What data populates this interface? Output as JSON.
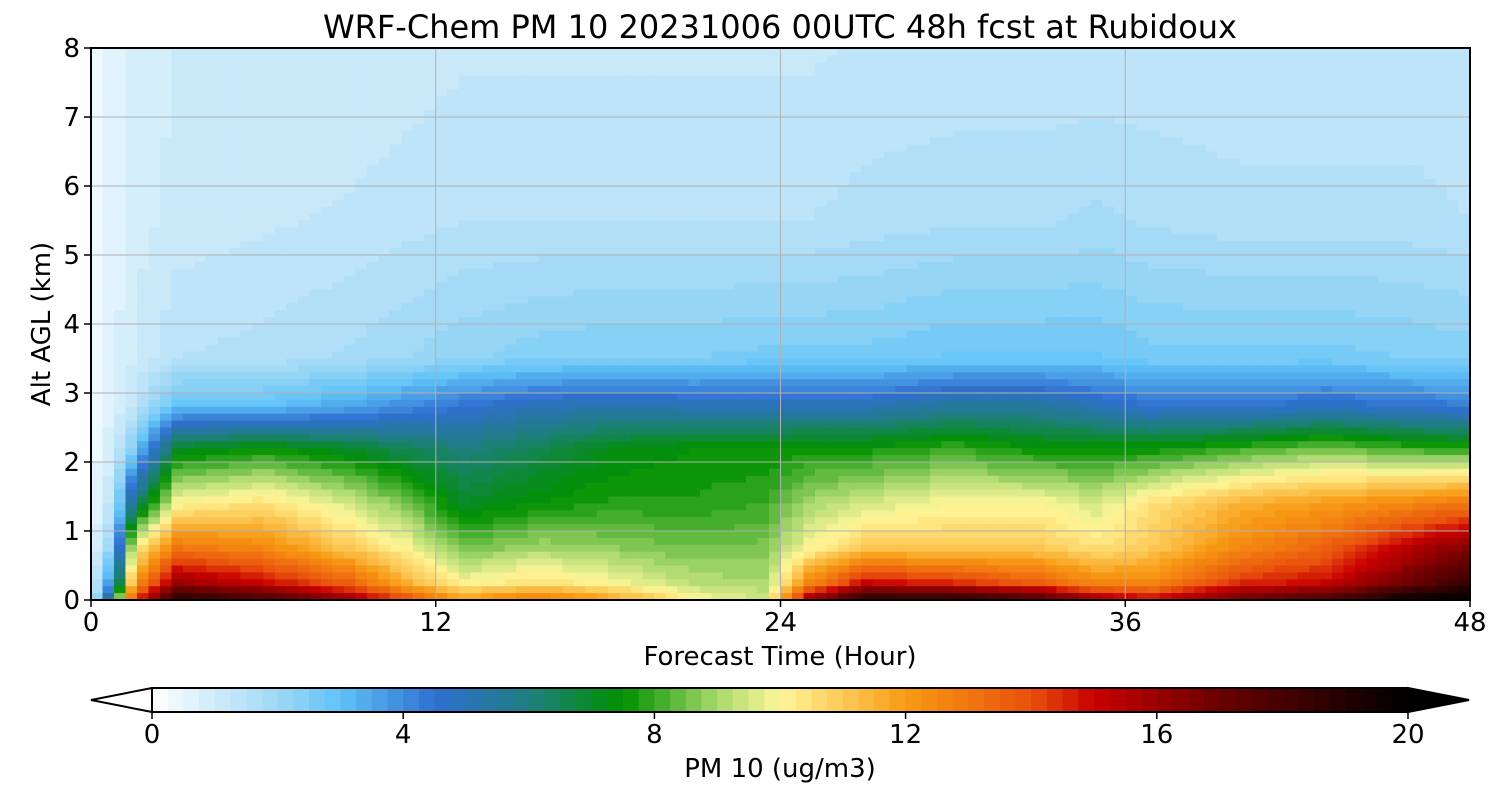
{
  "chart_data": {
    "type": "heatmap",
    "title": "WRF-Chem PM 10  20231006 00UTC 48h fcst at Rubidoux",
    "xlabel": "Forecast Time (Hour)",
    "ylabel": "Alt AGL (km)",
    "xlim": [
      0,
      48
    ],
    "ylim": [
      0,
      8
    ],
    "x_ticks": [
      "0",
      "12",
      "24",
      "36",
      "48"
    ],
    "y_ticks": [
      "0",
      "1",
      "2",
      "3",
      "4",
      "5",
      "6",
      "7",
      "8"
    ],
    "grid": true,
    "colorbar": {
      "label": "PM 10  (ug/m3)",
      "range": [
        0,
        20
      ],
      "ticks": [
        "0",
        "4",
        "8",
        "12",
        "16",
        "20"
      ],
      "extend": "both",
      "orientation": "horizontal",
      "colors": [
        {
          "value": 0,
          "color": "#ffffff"
        },
        {
          "value": 2,
          "color": "#9fd8f5"
        },
        {
          "value": 3,
          "color": "#5fc2f7"
        },
        {
          "value": 4.5,
          "color": "#2f6fd0"
        },
        {
          "value": 6,
          "color": "#1f7e80"
        },
        {
          "value": 7.5,
          "color": "#009000"
        },
        {
          "value": 9,
          "color": "#a8d86c"
        },
        {
          "value": 10,
          "color": "#fff79a"
        },
        {
          "value": 12,
          "color": "#f89b14"
        },
        {
          "value": 14,
          "color": "#e8500c"
        },
        {
          "value": 15,
          "color": "#c80000"
        },
        {
          "value": 17,
          "color": "#6a0000"
        },
        {
          "value": 20,
          "color": "#000000"
        }
      ]
    },
    "series": [
      {
        "x": 0,
        "values": [
          0.5,
          0.5,
          0.4,
          0.3,
          0.3,
          0.3,
          0.2,
          0.2,
          0.2
        ]
      },
      {
        "x": 0.8,
        "values": [
          7,
          4.5,
          2.5,
          1.5,
          1,
          0.8,
          0.7,
          0.6,
          0.6
        ]
      },
      {
        "x": 1.5,
        "values": [
          14,
          12,
          10,
          6,
          2.5,
          1.3,
          1.0,
          0.9,
          0.8
        ]
      },
      {
        "x": 3,
        "values": [
          19,
          16,
          13,
          10,
          7,
          3,
          1.5,
          1.1,
          1.0
        ]
      },
      {
        "x": 6,
        "values": [
          18,
          15,
          12.5,
          10.5,
          7.5,
          3,
          1.6,
          1.2,
          1.0
        ]
      },
      {
        "x": 9,
        "values": [
          16,
          13.5,
          11,
          9.5,
          7,
          3.5,
          1.8,
          1.3,
          1.0
        ]
      },
      {
        "x": 11,
        "values": [
          14,
          11.5,
          10,
          8.5,
          6.5,
          4,
          2,
          1.4,
          1.1
        ]
      },
      {
        "x": 13,
        "values": [
          12,
          10,
          8.5,
          7,
          6,
          4.5,
          2.2,
          1.5,
          1.2
        ]
      },
      {
        "x": 15.5,
        "values": [
          13,
          10.5,
          9,
          7.5,
          6.5,
          5,
          2.4,
          1.5,
          1.2
        ]
      },
      {
        "x": 18,
        "values": [
          12,
          10,
          8.8,
          7.8,
          7.2,
          5.2,
          2.5,
          1.5,
          1.2
        ]
      },
      {
        "x": 21,
        "values": [
          10,
          9.2,
          8.5,
          7.8,
          7.5,
          5,
          2.5,
          1.5,
          1.2
        ]
      },
      {
        "x": 23.5,
        "values": [
          9.5,
          9.0,
          8.6,
          8.0,
          7.5,
          5,
          2.6,
          1.5,
          1.2
        ]
      },
      {
        "x": 25,
        "values": [
          16,
          12.5,
          10,
          9,
          7.6,
          5,
          2.6,
          1.5,
          1.2
        ]
      },
      {
        "x": 27,
        "values": [
          19,
          15,
          11,
          9.5,
          7.6,
          5,
          2.6,
          1.6,
          1.3
        ]
      },
      {
        "x": 30,
        "values": [
          19,
          14.5,
          11,
          10,
          8,
          5.5,
          2.8,
          1.7,
          1.3
        ]
      },
      {
        "x": 33,
        "values": [
          18,
          13.5,
          11,
          10,
          7.5,
          5.5,
          2.8,
          1.7,
          1.3
        ]
      },
      {
        "x": 35,
        "values": [
          16,
          12.5,
          10.5,
          9.5,
          7.5,
          5,
          2.8,
          1.8,
          1.3
        ]
      },
      {
        "x": 37,
        "values": [
          15,
          12.5,
          11,
          10.5,
          7.5,
          4.5,
          2.6,
          1.7,
          1.3
        ]
      },
      {
        "x": 40,
        "values": [
          17,
          14.5,
          12.5,
          11.5,
          8,
          4.5,
          2.6,
          1.6,
          1.3
        ]
      },
      {
        "x": 43,
        "values": [
          18,
          15,
          13.5,
          12,
          8.5,
          4.8,
          2.6,
          1.6,
          1.3
        ]
      },
      {
        "x": 46,
        "values": [
          20,
          17,
          15.5,
          12.5,
          8,
          4.5,
          2.5,
          1.6,
          1.3
        ]
      },
      {
        "x": 48,
        "values": [
          20,
          18.5,
          16.5,
          13,
          7.8,
          4.3,
          2.4,
          1.5,
          1.3
        ]
      }
    ],
    "altitudes": [
      0,
      0.25,
      0.75,
      1.4,
      2.2,
      2.8,
      3.5,
      5.5,
      8
    ]
  }
}
